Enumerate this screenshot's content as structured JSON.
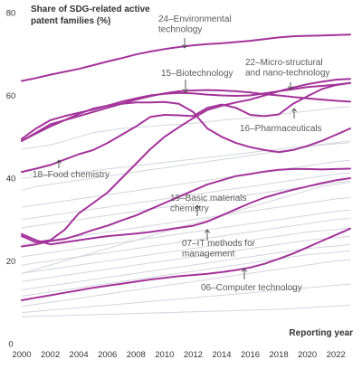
{
  "chart_data": {
    "type": "line",
    "title": "",
    "ylabel": "Share of SDG-related active patent families (%)",
    "ylabel_lines": [
      "Share of SDG-related active",
      "patent families (%)"
    ],
    "xlabel": "Reporting year",
    "x": [
      2000,
      2001,
      2002,
      2003,
      2004,
      2005,
      2006,
      2007,
      2008,
      2009,
      2010,
      2011,
      2012,
      2013,
      2014,
      2015,
      2016,
      2017,
      2018,
      2019,
      2020,
      2021,
      2022,
      2023
    ],
    "xticks": [
      2000,
      2002,
      2004,
      2006,
      2008,
      2010,
      2012,
      2014,
      2016,
      2018,
      2020,
      2022
    ],
    "xlim": [
      2000,
      2023
    ],
    "ylim": [
      0,
      80
    ],
    "yticks": [
      0,
      20,
      40,
      60,
      80
    ],
    "highlight_color": "#a3339a",
    "background_color": "#d3d5de",
    "grid": false,
    "highlighted_series": [
      {
        "name": "24–Environmental technology",
        "values": [
          63.5,
          64.2,
          65.0,
          65.7,
          66.4,
          67.3,
          68.2,
          69.0,
          69.9,
          70.6,
          71.2,
          71.7,
          72.1,
          72.4,
          72.6,
          72.9,
          73.2,
          73.6,
          74.0,
          74.3,
          74.4,
          74.5,
          74.6,
          74.7
        ]
      },
      {
        "name": "15–Biotechnology",
        "values": [
          49.0,
          51.0,
          53.0,
          54.0,
          55.0,
          56.0,
          57.0,
          58.0,
          59.0,
          59.8,
          60.5,
          61.0,
          61.2,
          61.3,
          61.2,
          61.0,
          60.7,
          60.3,
          60.0,
          59.6,
          59.3,
          59.0,
          58.7,
          58.5
        ]
      },
      {
        "name": "22–Micro-structural and nano-technology",
        "values": [
          49.5,
          52.0,
          54.0,
          55.0,
          55.8,
          56.6,
          57.5,
          58.5,
          59.3,
          60.0,
          60.4,
          60.6,
          60.5,
          60.2,
          60.0,
          59.9,
          60.0,
          60.5,
          61.0,
          61.5,
          62.0,
          62.3,
          62.6,
          63.0
        ]
      },
      {
        "name": "16–Pharmaceuticals",
        "values": [
          49.0,
          50.8,
          52.5,
          54.0,
          55.5,
          56.8,
          57.5,
          58.0,
          58.3,
          58.3,
          58.4,
          58.0,
          56.0,
          52.0,
          50.0,
          48.5,
          47.5,
          46.8,
          46.3,
          46.8,
          47.8,
          49.0,
          50.5,
          52.0
        ]
      },
      {
        "name": "18–Food chemistry",
        "values": [
          41.5,
          42.3,
          43.2,
          44.5,
          45.8,
          46.8,
          48.5,
          50.5,
          52.5,
          54.8,
          55.3,
          55.2,
          55.0,
          57.0,
          57.8,
          57.0,
          55.3,
          55.0,
          55.4,
          58.0,
          59.8,
          61.5,
          62.5,
          63.0
        ]
      },
      {
        "name": "19–Basic materials chemistry",
        "values": [
          26.0,
          24.5,
          25.0,
          27.5,
          31.5,
          34.0,
          36.5,
          40.0,
          43.5,
          47.0,
          50.0,
          52.3,
          54.5,
          56.5,
          57.5,
          58.3,
          59.0,
          60.0,
          61.0,
          61.9,
          62.7,
          63.3,
          63.8,
          64.0
        ]
      },
      {
        "name": "07–IT methods for management",
        "values": [
          23.5,
          24.0,
          24.8,
          25.3,
          26.3,
          27.5,
          28.5,
          29.8,
          31.0,
          32.5,
          34.0,
          35.5,
          37.0,
          38.5,
          39.5,
          40.5,
          41.0,
          41.6,
          42.0,
          42.2,
          42.2,
          42.1,
          42.2,
          42.3
        ]
      },
      {
        "name": "06–Computer technology",
        "values": [
          10.5,
          11.1,
          11.7,
          12.3,
          12.9,
          13.5,
          14.0,
          14.5,
          15.0,
          15.5,
          15.9,
          16.3,
          16.6,
          16.9,
          17.3,
          17.8,
          18.4,
          19.3,
          20.5,
          21.8,
          23.3,
          24.8,
          26.3,
          27.8
        ]
      },
      {
        "name": "",
        "values": [
          26.5,
          25.0,
          24.0,
          24.5,
          25.0,
          25.5,
          26.0,
          26.3,
          26.6,
          27.0,
          27.5,
          28.0,
          28.5,
          29.5,
          31.0,
          32.5,
          34.0,
          35.3,
          36.3,
          37.2,
          38.0,
          38.8,
          39.5,
          40.0
        ]
      }
    ],
    "background_series": [
      [
        47.0,
        47.5,
        48.0,
        49.0,
        50.0,
        51.0,
        51.5,
        52.0,
        52.3,
        52.5,
        52.8,
        53.0,
        53.3,
        53.6,
        54.0,
        54.3,
        54.6,
        55.0,
        55.4,
        55.8,
        56.2,
        56.6,
        57.0,
        57.3
      ],
      [
        37.0,
        38.0,
        38.5,
        39.0,
        39.5,
        40.0,
        40.5,
        41.0,
        41.5,
        42.0,
        42.5,
        43.0,
        43.5,
        44.0,
        44.5,
        45.0,
        45.5,
        46.0,
        46.5,
        47.0,
        47.5,
        48.0,
        48.3,
        48.6
      ],
      [
        33.0,
        33.5,
        34.0,
        34.5,
        35.0,
        35.5,
        36.0,
        36.5,
        37.0,
        37.5,
        38.0,
        38.5,
        39.0,
        39.5,
        40.0,
        40.5,
        41.0,
        41.5,
        42.0,
        42.5,
        43.0,
        43.5,
        44.0,
        44.3
      ],
      [
        30.0,
        30.5,
        31.0,
        31.5,
        32.0,
        32.5,
        33.0,
        33.5,
        34.0,
        34.5,
        35.0,
        35.5,
        36.0,
        36.5,
        37.0,
        37.5,
        38.0,
        38.5,
        39.0,
        39.5,
        40.0,
        40.5,
        41.0,
        41.3
      ],
      [
        28.0,
        28.5,
        29.0,
        29.5,
        30.0,
        30.5,
        31.0,
        31.5,
        32.0,
        32.5,
        33.0,
        33.5,
        34.0,
        34.5,
        35.0,
        35.5,
        36.0,
        36.5,
        37.0,
        37.5,
        38.0,
        38.5,
        39.0,
        39.3
      ],
      [
        24.0,
        24.5,
        25.0,
        25.5,
        26.0,
        26.5,
        27.0,
        27.5,
        28.0,
        28.5,
        29.0,
        29.5,
        30.0,
        30.5,
        31.0,
        31.5,
        32.0,
        32.5,
        33.0,
        33.5,
        34.0,
        34.5,
        35.0,
        35.3
      ],
      [
        21.0,
        21.5,
        22.0,
        22.5,
        23.0,
        23.5,
        24.0,
        24.5,
        25.0,
        25.5,
        26.0,
        26.5,
        27.0,
        27.5,
        28.0,
        28.5,
        29.0,
        29.5,
        30.0,
        30.5,
        31.0,
        31.5,
        32.0,
        32.3
      ],
      [
        19.0,
        19.5,
        20.0,
        20.5,
        21.0,
        21.5,
        22.0,
        22.5,
        23.0,
        23.5,
        24.0,
        24.5,
        25.0,
        25.5,
        26.0,
        26.5,
        27.0,
        27.5,
        28.0,
        28.5,
        29.0,
        29.5,
        30.0,
        30.3
      ],
      [
        17.0,
        17.5,
        18.0,
        18.5,
        19.0,
        19.5,
        20.0,
        20.5,
        21.0,
        21.5,
        22.0,
        22.5,
        23.0,
        23.5,
        24.0,
        24.5,
        25.0,
        25.5,
        26.0,
        26.5,
        27.0,
        27.3,
        27.6,
        28.0
      ],
      [
        15.0,
        15.5,
        16.0,
        16.5,
        17.0,
        17.5,
        18.0,
        18.5,
        19.0,
        19.5,
        20.0,
        20.5,
        21.0,
        21.5,
        22.0,
        22.5,
        23.0,
        23.5,
        24.0,
        24.5,
        25.0,
        25.3,
        25.6,
        26.0
      ],
      [
        13.0,
        13.5,
        14.0,
        14.5,
        15.0,
        15.5,
        16.0,
        16.5,
        17.0,
        17.5,
        18.0,
        18.5,
        19.0,
        19.5,
        20.0,
        20.5,
        21.0,
        21.5,
        22.0,
        22.5,
        23.0,
        23.3,
        23.6,
        24.0
      ],
      [
        11.5,
        12.0,
        12.5,
        13.0,
        13.5,
        14.0,
        14.5,
        15.0,
        15.5,
        16.0,
        16.5,
        17.0,
        17.5,
        18.0,
        18.5,
        19.0,
        19.5,
        20.0,
        20.5,
        21.0,
        21.5,
        21.8,
        22.1,
        22.5
      ],
      [
        9.0,
        9.5,
        10.0,
        10.5,
        11.0,
        11.5,
        12.0,
        12.5,
        13.0,
        13.5,
        14.0,
        14.5,
        15.0,
        15.5,
        16.0,
        16.5,
        17.0,
        17.5,
        18.0,
        18.5,
        19.0,
        19.5,
        20.0,
        20.3
      ],
      [
        7.5,
        7.8,
        8.1,
        8.4,
        8.7,
        9.0,
        9.3,
        9.6,
        9.9,
        10.2,
        10.5,
        10.8,
        11.1,
        11.4,
        11.7,
        12.0,
        12.3,
        12.6,
        12.9,
        13.2,
        13.5,
        13.8,
        14.1,
        14.4
      ],
      [
        6.5,
        6.6,
        6.7,
        6.8,
        6.9,
        7.0,
        7.1,
        7.2,
        7.3,
        7.4,
        7.5,
        7.6,
        7.7,
        7.8,
        7.9,
        8.0,
        8.1,
        8.2,
        8.3,
        8.5,
        8.7,
        8.9,
        9.1,
        9.3
      ],
      [
        17.0,
        18.0,
        19.0,
        20.0,
        21.0,
        22.0,
        23.0,
        24.0,
        25.0,
        26.0,
        27.0,
        28.0,
        29.0,
        30.0,
        31.0,
        32.0,
        33.0,
        34.0,
        35.0,
        36.0,
        37.0,
        38.0,
        38.5,
        39.0
      ],
      [
        40.0,
        40.3,
        40.6,
        41.0,
        41.4,
        41.8,
        42.2,
        42.6,
        43.0,
        43.4,
        43.8,
        44.2,
        44.6,
        45.0,
        45.4,
        45.8,
        46.2,
        46.6,
        47.0,
        47.4,
        47.8,
        48.2,
        48.6,
        49.0
      ]
    ],
    "annotations": [
      {
        "lines": [
          "24–Environmental",
          "technology"
        ]
      },
      {
        "lines": [
          "15–Biotechnology"
        ]
      },
      {
        "lines": [
          "22–Micro-structural",
          "and nano-technology"
        ]
      },
      {
        "lines": [
          "16–Pharmaceuticals"
        ]
      },
      {
        "lines": [
          "18–Food chemistry"
        ]
      },
      {
        "lines": [
          "19–Basic materials",
          "chemistry"
        ]
      },
      {
        "lines": [
          "07–IT methods for",
          "management"
        ]
      },
      {
        "lines": [
          "06–Computer technology"
        ]
      }
    ]
  }
}
